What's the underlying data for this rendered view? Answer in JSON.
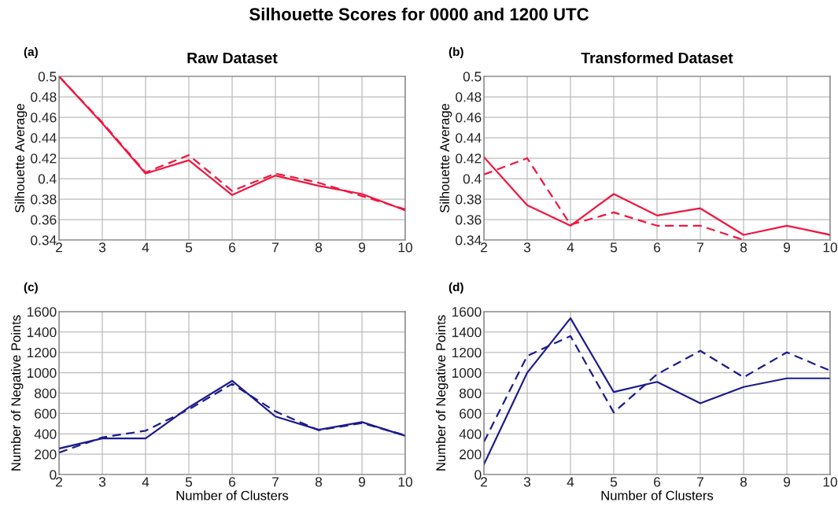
{
  "chart_data": [
    {
      "type": "line",
      "title": "Raw Dataset",
      "ylabel": "Silhouette Average",
      "annotations": [
        "Silhouette Scores for 0000 and 1200 UTC",
        "(a)"
      ],
      "x": [
        2,
        3,
        4,
        5,
        6,
        7,
        8,
        9,
        10
      ],
      "xlim": [
        2,
        10
      ],
      "xticks": [
        2,
        3,
        4,
        5,
        6,
        7,
        8,
        9,
        10
      ],
      "ylim": [
        0.34,
        0.5
      ],
      "yticks": [
        0.34,
        0.36,
        0.38,
        0.4,
        0.42,
        0.44,
        0.46,
        0.48,
        0.5
      ],
      "grid": true,
      "legend": false,
      "marker": "none",
      "series": [
        {
          "color": "#f0163f",
          "line_style": "solid",
          "values": [
            0.5,
            0.454,
            0.405,
            0.418,
            0.384,
            0.403,
            0.393,
            0.385,
            0.369
          ]
        },
        {
          "color": "#f0163f",
          "line_style": "dashed",
          "values": [
            0.5,
            0.455,
            0.406,
            0.423,
            0.388,
            0.405,
            0.396,
            0.383,
            0.37
          ]
        }
      ]
    },
    {
      "type": "line",
      "title": "Transformed Dataset",
      "ylabel": "Silhouette Average",
      "annotations": [
        "(b)"
      ],
      "x": [
        2,
        3,
        4,
        5,
        6,
        7,
        8,
        9,
        10
      ],
      "xlim": [
        2,
        10
      ],
      "xticks": [
        2,
        3,
        4,
        5,
        6,
        7,
        8,
        9,
        10
      ],
      "ylim": [
        0.34,
        0.5
      ],
      "yticks": [
        0.34,
        0.36,
        0.38,
        0.4,
        0.42,
        0.44,
        0.46,
        0.48,
        0.5
      ],
      "grid": true,
      "legend": false,
      "marker": "none",
      "series": [
        {
          "color": "#f0163f",
          "line_style": "solid",
          "values": [
            0.421,
            0.374,
            0.354,
            0.385,
            0.364,
            0.371,
            0.345,
            0.354,
            0.345
          ]
        },
        {
          "color": "#f0163f",
          "line_style": "dashed",
          "values": [
            0.404,
            0.42,
            0.355,
            0.367,
            0.354,
            0.354,
            0.34,
            null,
            null
          ]
        }
      ]
    },
    {
      "type": "line",
      "xlabel": "Number of Clusters",
      "ylabel": "Number of Negative Points",
      "annotations": [
        "(c)"
      ],
      "x": [
        2,
        3,
        4,
        5,
        6,
        7,
        8,
        9,
        10
      ],
      "xlim": [
        2,
        10
      ],
      "xticks": [
        2,
        3,
        4,
        5,
        6,
        7,
        8,
        9,
        10
      ],
      "ylim": [
        0,
        1600
      ],
      "yticks": [
        0,
        200,
        400,
        600,
        800,
        1000,
        1200,
        1400,
        1600
      ],
      "grid": true,
      "legend": false,
      "marker": "none",
      "series": [
        {
          "color": "#1c1c8c",
          "line_style": "solid",
          "values": [
            255,
            355,
            355,
            660,
            920,
            570,
            440,
            515,
            380
          ]
        },
        {
          "color": "#1c1c8c",
          "line_style": "dashed",
          "values": [
            215,
            365,
            430,
            640,
            890,
            620,
            435,
            505,
            385
          ]
        }
      ]
    },
    {
      "type": "line",
      "xlabel": "Number of Clusters",
      "ylabel": "Number of Negative Points",
      "annotations": [
        "(d)"
      ],
      "x": [
        2,
        3,
        4,
        5,
        6,
        7,
        8,
        9,
        10
      ],
      "xlim": [
        2,
        10
      ],
      "xticks": [
        2,
        3,
        4,
        5,
        6,
        7,
        8,
        9,
        10
      ],
      "ylim": [
        0,
        1600
      ],
      "yticks": [
        0,
        200,
        400,
        600,
        800,
        1000,
        1200,
        1400,
        1600
      ],
      "grid": true,
      "legend": false,
      "marker": "none",
      "series": [
        {
          "color": "#1c1c8c",
          "line_style": "solid",
          "values": [
            100,
            1000,
            1535,
            810,
            910,
            700,
            860,
            945,
            945
          ]
        },
        {
          "color": "#1c1c8c",
          "line_style": "dashed",
          "values": [
            320,
            1165,
            1360,
            610,
            985,
            1215,
            955,
            1200,
            1020
          ]
        }
      ]
    }
  ]
}
